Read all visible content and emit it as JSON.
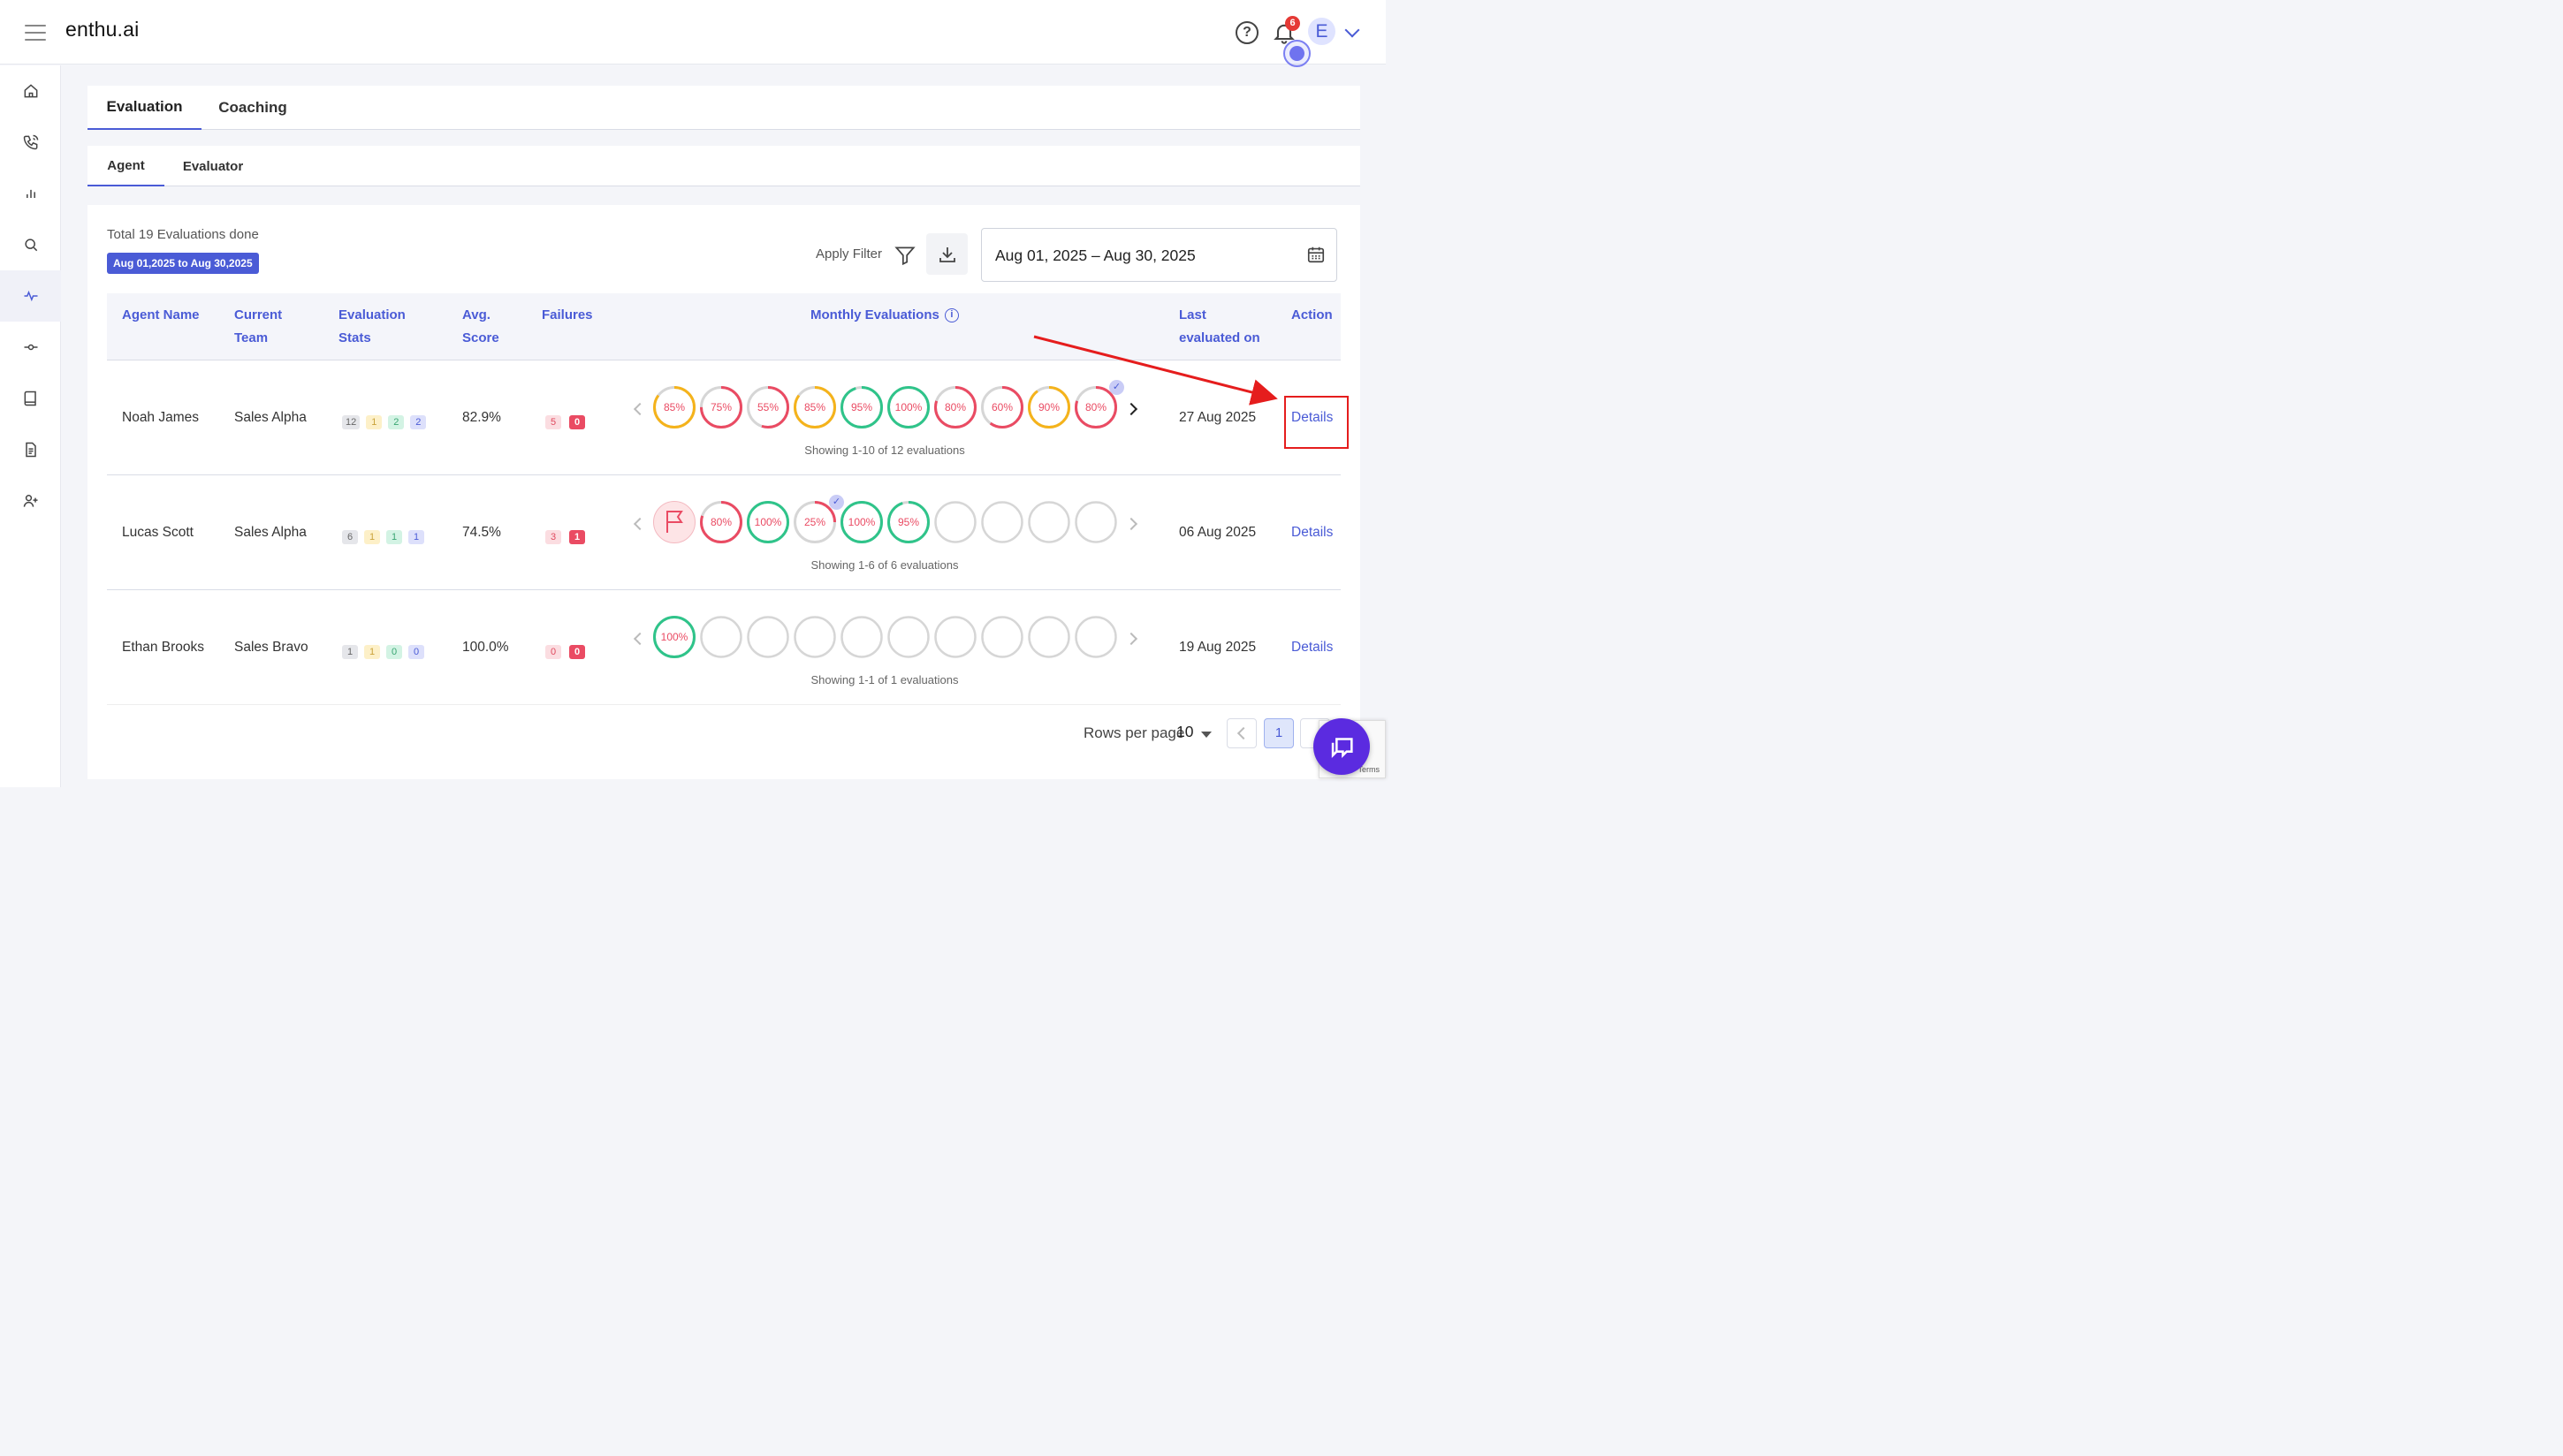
{
  "app": {
    "brand": "enthu.ai",
    "notification_count": "6",
    "avatar_initial": "E"
  },
  "sidebar": {
    "items": [
      "home-icon",
      "phone-icon",
      "bar-chart-icon",
      "search-icon",
      "activity-icon",
      "commit-icon",
      "book-icon",
      "document-icon",
      "add-user-icon"
    ],
    "active_index": 4
  },
  "tabs": {
    "main": [
      "Evaluation",
      "Coaching"
    ],
    "sub": [
      "Agent",
      "Evaluator"
    ]
  },
  "summary": {
    "total": "Total 19 Evaluations done",
    "range_chip": "Aug 01,2025 to Aug 30,2025"
  },
  "toolbar": {
    "apply_filter": "Apply Filter",
    "date_range": "Aug 01, 2025 – Aug 30, 2025"
  },
  "table": {
    "headers": {
      "agent_name": "Agent Name",
      "current_team_1": "Current",
      "current_team_2": "Team",
      "eval_stats_1": "Evaluation",
      "eval_stats_2": "Stats",
      "avg_1": "Avg.",
      "avg_2": "Score",
      "failures": "Failures",
      "monthly": "Monthly Evaluations",
      "last_1": "Last",
      "last_2": "evaluated on",
      "action": "Action"
    },
    "rows": [
      {
        "agent": "Noah James",
        "team": "Sales Alpha",
        "stats": [
          "12",
          "1",
          "2",
          "2"
        ],
        "avg": "82.9%",
        "fail_pink": "5",
        "fail_red": "0",
        "evals": [
          "85%",
          "75%",
          "55%",
          "85%",
          "95%",
          "100%",
          "80%",
          "60%",
          "90%",
          "80%"
        ],
        "showing": "Showing 1-10 of 12 evaluations",
        "last": "27 Aug 2025",
        "action": "Details"
      },
      {
        "agent": "Lucas Scott",
        "team": "Sales Alpha",
        "stats": [
          "6",
          "1",
          "1",
          "1"
        ],
        "avg": "74.5%",
        "fail_pink": "3",
        "fail_red": "1",
        "evals": [
          "flag",
          "80%",
          "100%",
          "25%",
          "100%",
          "95%",
          "",
          "",
          "",
          ""
        ],
        "showing": "Showing 1-6 of 6 evaluations",
        "last": "06 Aug 2025",
        "action": "Details"
      },
      {
        "agent": "Ethan Brooks",
        "team": "Sales Bravo",
        "stats": [
          "1",
          "1",
          "0",
          "0"
        ],
        "avg": "100.0%",
        "fail_pink": "0",
        "fail_red": "0",
        "evals": [
          "100%",
          "",
          "",
          "",
          "",
          "",
          "",
          "",
          "",
          ""
        ],
        "showing": "Showing 1-1 of 1 evaluations",
        "last": "19 Aug 2025",
        "action": "Details"
      }
    ]
  },
  "pagination": {
    "rows_per_page_label": "Rows per page",
    "rows_per_page": "10",
    "current_page": "1"
  },
  "recaptcha": {
    "terms": "Terms"
  },
  "colors": {
    "accent": "#4a5bd6",
    "ring_red": "#ea4b63",
    "ring_green": "#2fc48a",
    "ring_yellow": "#f5b31b",
    "ring_empty": "#d6d6d6",
    "annotation": "#e51d1d"
  }
}
